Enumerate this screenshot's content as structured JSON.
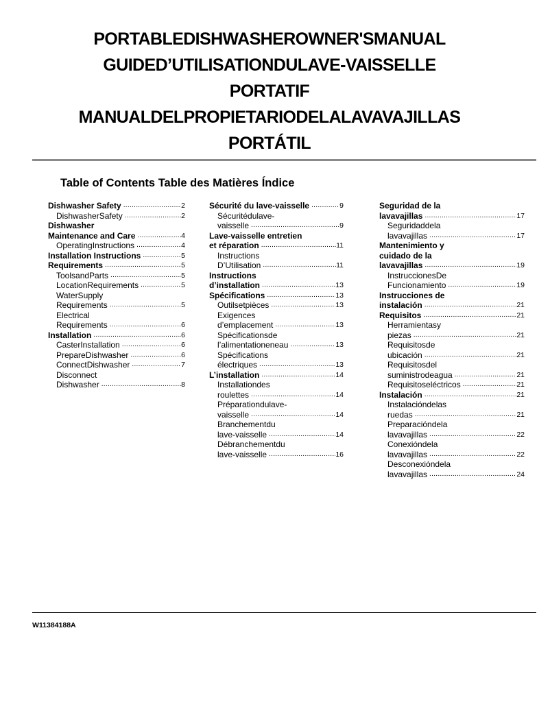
{
  "title_lines": [
    "PORTABLEDISHWASHEROWNER'SMANUAL",
    "GUIDED’UTILISATIONDULAVE-VAISSELLE",
    "PORTATIF",
    "MANUALDELPROPIETARIODELALAVAVAJILLAS",
    "PORTÁTIL"
  ],
  "toc_heading": "Table of Contents Table des Matières Índice",
  "columns": [
    [
      {
        "level": 1,
        "lines": [
          "Dishwasher Safety"
        ],
        "page": "2"
      },
      {
        "level": 2,
        "lines": [
          "DishwasherSafety"
        ],
        "page": "2"
      },
      {
        "level": 1,
        "lines": [
          "Dishwasher",
          "Maintenance and Care"
        ],
        "page": "4"
      },
      {
        "level": 2,
        "lines": [
          "OperatingInstructions"
        ],
        "page": "4"
      },
      {
        "level": 1,
        "lines": [
          "Installation Instructions"
        ],
        "page": "5"
      },
      {
        "level": 1,
        "lines": [
          "Requirements"
        ],
        "page": "5"
      },
      {
        "level": 2,
        "lines": [
          "ToolsandParts"
        ],
        "page": "5"
      },
      {
        "level": 2,
        "lines": [
          "LocationRequirements"
        ],
        "page": "5"
      },
      {
        "level": 2,
        "lines": [
          "WaterSupply",
          "Requirements"
        ],
        "page": "5"
      },
      {
        "level": 2,
        "lines": [
          "Electrical",
          "Requirements"
        ],
        "page": "6"
      },
      {
        "level": 1,
        "lines": [
          "Installation"
        ],
        "page": "6"
      },
      {
        "level": 2,
        "lines": [
          "CasterInstallation"
        ],
        "page": "6"
      },
      {
        "level": 2,
        "lines": [
          "PrepareDishwasher"
        ],
        "page": "6"
      },
      {
        "level": 2,
        "lines": [
          "ConnectDishwasher"
        ],
        "page": "7"
      },
      {
        "level": 2,
        "lines": [
          "Disconnect",
          "Dishwasher"
        ],
        "page": "8"
      }
    ],
    [
      {
        "level": 1,
        "lines": [
          "Sécurité du lave-vaisselle"
        ],
        "page": "9"
      },
      {
        "level": 2,
        "lines": [
          "Sécuritédulave-",
          "vaisselle"
        ],
        "page": "9"
      },
      {
        "level": 1,
        "lines": [
          "Lave-vaisselle entretien",
          "et réparation"
        ],
        "page": "11"
      },
      {
        "level": 2,
        "lines": [
          "Instructions",
          "D’Utilisation"
        ],
        "page": "11"
      },
      {
        "level": 1,
        "lines": [
          "Instructions",
          "d’installation"
        ],
        "page": "13"
      },
      {
        "level": 1,
        "lines": [
          "Spécifications"
        ],
        "page": "13"
      },
      {
        "level": 2,
        "lines": [
          "Outilsetpièces"
        ],
        "page": "13"
      },
      {
        "level": 2,
        "lines": [
          "Exigences",
          "d’emplacement"
        ],
        "page": "13"
      },
      {
        "level": 2,
        "lines": [
          "Spécificationsde",
          "l’alimentationeneau"
        ],
        "page": "13"
      },
      {
        "level": 2,
        "lines": [
          "Spécifications",
          "électriques"
        ],
        "page": "13"
      },
      {
        "level": 1,
        "lines": [
          "L’installation"
        ],
        "page": "14"
      },
      {
        "level": 2,
        "lines": [
          "Installationdes",
          "roulettes"
        ],
        "page": "14"
      },
      {
        "level": 2,
        "lines": [
          "Préparationdulave-",
          "vaisselle"
        ],
        "page": "14"
      },
      {
        "level": 2,
        "lines": [
          "Branchementdu",
          "lave-vaisselle"
        ],
        "page": "14"
      },
      {
        "level": 2,
        "lines": [
          "Débranchementdu",
          "lave-vaisselle"
        ],
        "page": "16"
      }
    ],
    [
      {
        "level": 1,
        "lines": [
          "Seguridad de la",
          "lavavajillas"
        ],
        "page": "17"
      },
      {
        "level": 2,
        "lines": [
          "Seguridaddela",
          "lavavajillas"
        ],
        "page": "17"
      },
      {
        "level": 1,
        "lines": [
          "Mantenimiento y",
          "cuidado de la",
          "lavavajillas"
        ],
        "page": "19"
      },
      {
        "level": 2,
        "lines": [
          "InstruccionesDe",
          "Funcionamiento"
        ],
        "page": "19"
      },
      {
        "level": 1,
        "lines": [
          "Instrucciones de",
          "instalación"
        ],
        "page": "21"
      },
      {
        "level": 1,
        "lines": [
          "Requisitos"
        ],
        "page": "21"
      },
      {
        "level": 2,
        "lines": [
          "Herramientasy",
          "piezas"
        ],
        "page": "21"
      },
      {
        "level": 2,
        "lines": [
          "Requisitosde",
          "ubicación"
        ],
        "page": "21"
      },
      {
        "level": 2,
        "lines": [
          "Requisitosdel",
          "suministrodeagua"
        ],
        "page": "21"
      },
      {
        "level": 2,
        "lines": [
          "Requisitoseléctricos"
        ],
        "page": "21"
      },
      {
        "level": 1,
        "lines": [
          "Instalación"
        ],
        "page": "21"
      },
      {
        "level": 2,
        "lines": [
          "Instalacióndelas",
          "ruedas"
        ],
        "page": "21"
      },
      {
        "level": 2,
        "lines": [
          "Preparacióndela",
          "lavavajillas"
        ],
        "page": "22"
      },
      {
        "level": 2,
        "lines": [
          "Conexióndela",
          "lavavajillas"
        ],
        "page": "22"
      },
      {
        "level": 2,
        "lines": [
          "Desconexióndela",
          "lavavajillas"
        ],
        "page": "24"
      }
    ]
  ],
  "footer": {
    "document_code": "W11384188A"
  }
}
